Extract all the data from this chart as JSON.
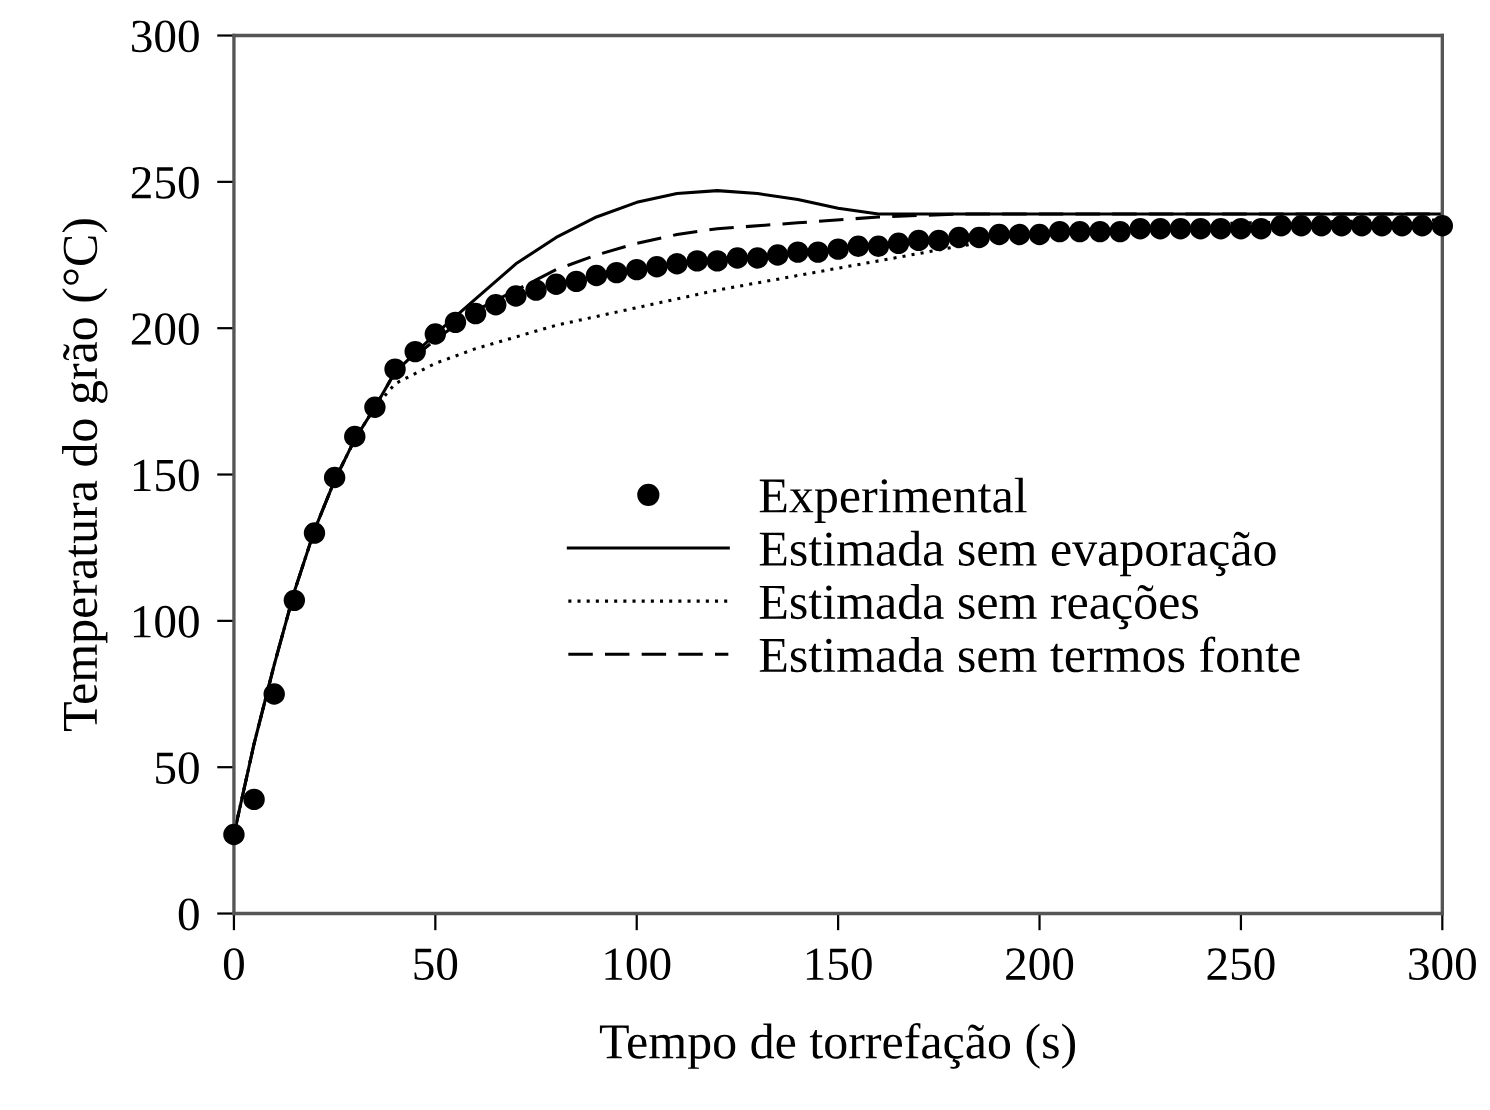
{
  "chart_data": {
    "type": "line",
    "xlabel": "Tempo de torrefação (s)",
    "ylabel": "Temperatura do grão (°C)",
    "xlim": [
      0,
      300
    ],
    "xticks": [
      0,
      50,
      100,
      150,
      200,
      250,
      300
    ],
    "ylim": [
      0,
      300
    ],
    "yticks": [
      0,
      50,
      100,
      150,
      200,
      250,
      300
    ],
    "grid": false,
    "legend": "center",
    "series": [
      {
        "name": "Experimental",
        "type": "scatter",
        "marker": "circle",
        "color": "#000000",
        "x": [
          0,
          5,
          10,
          15,
          20,
          25,
          30,
          35,
          40,
          45,
          50,
          55,
          60,
          65,
          70,
          75,
          80,
          85,
          90,
          95,
          100,
          105,
          110,
          115,
          120,
          125,
          130,
          135,
          140,
          145,
          150,
          155,
          160,
          165,
          170,
          175,
          180,
          185,
          190,
          195,
          200,
          205,
          210,
          215,
          220,
          225,
          230,
          235,
          240,
          245,
          250,
          255,
          260,
          265,
          270,
          275,
          280,
          285,
          290,
          295,
          300
        ],
        "values": [
          27,
          39,
          75,
          107,
          130,
          149,
          163,
          173,
          186,
          192,
          198,
          202,
          205,
          208,
          211,
          213,
          215,
          216,
          218,
          219,
          220,
          221,
          222,
          223,
          223,
          224,
          224,
          225,
          226,
          226,
          227,
          228,
          228,
          229,
          230,
          230,
          231,
          231,
          232,
          232,
          232,
          233,
          233,
          233,
          233,
          234,
          234,
          234,
          234,
          234,
          234,
          234,
          235,
          235,
          235,
          235,
          235,
          235,
          235,
          235,
          235
        ]
      },
      {
        "name": "Estimada sem evaporação",
        "line_style": "solid",
        "color": "#000000",
        "x": [
          0,
          5,
          10,
          15,
          20,
          25,
          30,
          35,
          40,
          50,
          60,
          70,
          80,
          90,
          100,
          110,
          120,
          130,
          140,
          150,
          160,
          170,
          200,
          250,
          300
        ],
        "values": [
          27,
          58,
          85,
          110,
          131,
          148,
          162,
          173,
          185,
          198,
          210,
          222,
          231,
          238,
          243,
          246,
          247,
          246,
          244,
          241,
          239,
          239,
          239,
          239,
          239
        ]
      },
      {
        "name": "Estimada sem reações",
        "line_style": "dotted",
        "color": "#000000",
        "x": [
          0,
          5,
          10,
          15,
          20,
          25,
          30,
          35,
          40,
          50,
          60,
          70,
          80,
          100,
          120,
          140,
          160,
          180,
          200,
          220,
          250,
          300
        ],
        "values": [
          27,
          58,
          85,
          110,
          131,
          148,
          162,
          173,
          181,
          188,
          193,
          197,
          201,
          207,
          213,
          218,
          223,
          228,
          232,
          234,
          236,
          237
        ]
      },
      {
        "name": "Estimada sem termos fonte",
        "line_style": "dashed",
        "color": "#000000",
        "x": [
          0,
          5,
          10,
          15,
          20,
          25,
          30,
          35,
          40,
          50,
          60,
          70,
          80,
          90,
          100,
          110,
          120,
          140,
          160,
          180,
          200,
          250,
          300
        ],
        "values": [
          27,
          58,
          85,
          110,
          131,
          148,
          162,
          173,
          185,
          196,
          206,
          213,
          220,
          225,
          229,
          232,
          234,
          236,
          238,
          239,
          239,
          239,
          239
        ]
      }
    ]
  }
}
